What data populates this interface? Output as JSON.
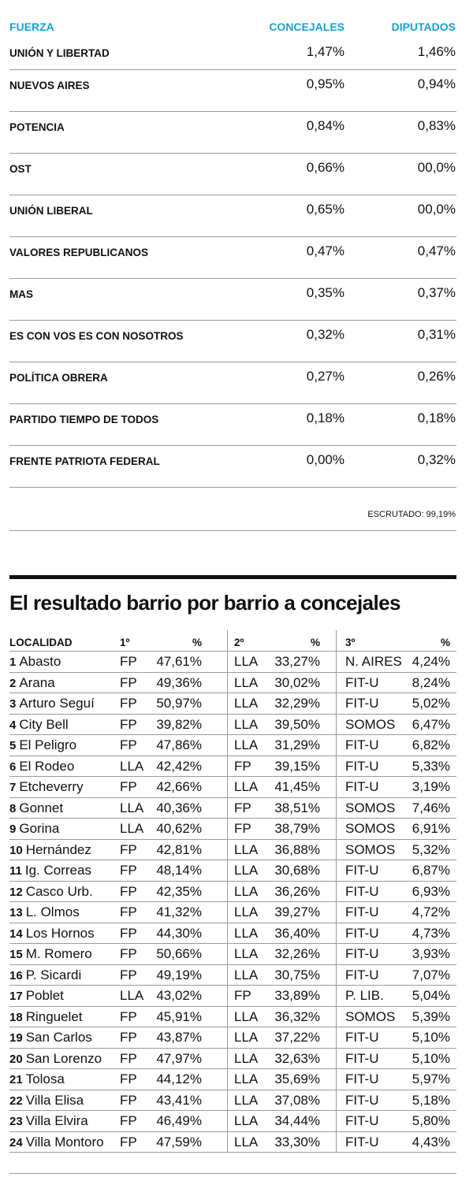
{
  "top_table": {
    "headers": {
      "fuerza": "FUERZA",
      "concejales": "CONCEJALES",
      "diputados": "DIPUTADOS"
    },
    "rows": [
      {
        "name": "UNIÓN Y LIBERTAD",
        "concejales": "1,47%",
        "diputados": "1,46%"
      },
      {
        "name": "NUEVOS AIRES",
        "concejales": "0,95%",
        "diputados": "0,94%"
      },
      {
        "name": "POTENCIA",
        "concejales": "0,84%",
        "diputados": "0,83%"
      },
      {
        "name": "OST",
        "concejales": "0,66%",
        "diputados": "00,0%"
      },
      {
        "name": "UNIÓN LIBERAL",
        "concejales": "0,65%",
        "diputados": "00,0%"
      },
      {
        "name": "VALORES REPUBLICANOS",
        "concejales": "0,47%",
        "diputados": "0,47%"
      },
      {
        "name": "MAS",
        "concejales": "0,35%",
        "diputados": "0,37%"
      },
      {
        "name": "ES CON VOS ES CON NOSOTROS",
        "concejales": "0,32%",
        "diputados": "0,31%"
      },
      {
        "name": "POLÍTICA OBRERA",
        "concejales": "0,27%",
        "diputados": "0,26%"
      },
      {
        "name": "PARTIDO TIEMPO DE TODOS",
        "concejales": "0,18%",
        "diputados": "0,18%"
      },
      {
        "name": "FRENTE PATRIOTA FEDERAL",
        "concejales": "0,00%",
        "diputados": "0,32%"
      }
    ],
    "escrutado": "ESCRUTADO: 99,19%"
  },
  "section_title": "El resultado barrio por barrio a concejales",
  "barrio_table": {
    "headers": {
      "localidad": "LOCALIDAD",
      "first": "1º",
      "second": "2º",
      "third": "3º",
      "pct": "%"
    },
    "rows": [
      {
        "num": "1",
        "name": "Abasto",
        "p1": "FP",
        "v1": "47,61%",
        "p2": "LLA",
        "v2": "33,27%",
        "p3": "N. AIRES",
        "v3": "4,24%"
      },
      {
        "num": "2",
        "name": "Arana",
        "p1": "FP",
        "v1": "49,36%",
        "p2": "LLA",
        "v2": "30,02%",
        "p3": "FIT-U",
        "v3": "8,24%"
      },
      {
        "num": "3",
        "name": "Arturo Seguí",
        "p1": "FP",
        "v1": "50,97%",
        "p2": "LLA",
        "v2": "32,29%",
        "p3": "FIT-U",
        "v3": "5,02%"
      },
      {
        "num": "4",
        "name": "City Bell",
        "p1": "FP",
        "v1": "39,82%",
        "p2": "LLA",
        "v2": "39,50%",
        "p3": "SOMOS",
        "v3": "6,47%"
      },
      {
        "num": "5",
        "name": "El Peligro",
        "p1": "FP",
        "v1": "47,86%",
        "p2": "LLA",
        "v2": "31,29%",
        "p3": "FIT-U",
        "v3": "6,82%"
      },
      {
        "num": "6",
        "name": "El Rodeo",
        "p1": "LLA",
        "v1": "42,42%",
        "p2": "FP",
        "v2": "39,15%",
        "p3": "FIT-U",
        "v3": "5,33%"
      },
      {
        "num": "7",
        "name": "Etcheverry",
        "p1": "FP",
        "v1": "42,66%",
        "p2": "LLA",
        "v2": "41,45%",
        "p3": "FIT-U",
        "v3": "3,19%"
      },
      {
        "num": "8",
        "name": "Gonnet",
        "p1": "LLA",
        "v1": "40,36%",
        "p2": "FP",
        "v2": "38,51%",
        "p3": "SOMOS",
        "v3": "7,46%"
      },
      {
        "num": "9",
        "name": "Gorina",
        "p1": "LLA",
        "v1": "40,62%",
        "p2": "FP",
        "v2": "38,79%",
        "p3": "SOMOS",
        "v3": "6,91%"
      },
      {
        "num": "10",
        "name": "Hernández",
        "p1": "FP",
        "v1": "42,81%",
        "p2": "LLA",
        "v2": "36,88%",
        "p3": "SOMOS",
        "v3": "5,32%"
      },
      {
        "num": "11",
        "name": "Ig. Correas",
        "p1": "FP",
        "v1": "48,14%",
        "p2": "LLA",
        "v2": "30,68%",
        "p3": "FIT-U",
        "v3": "6,87%"
      },
      {
        "num": "12",
        "name": "Casco Urb.",
        "p1": "FP",
        "v1": "42,35%",
        "p2": "LLA",
        "v2": "36,26%",
        "p3": "FIT-U",
        "v3": "6,93%"
      },
      {
        "num": "13",
        "name": "L. Olmos",
        "p1": "FP",
        "v1": "41,32%",
        "p2": "LLA",
        "v2": "39,27%",
        "p3": "FIT-U",
        "v3": "4,72%"
      },
      {
        "num": "14",
        "name": "Los Hornos",
        "p1": "FP",
        "v1": "44,30%",
        "p2": "LLA",
        "v2": "36,40%",
        "p3": "FIT-U",
        "v3": "4,73%"
      },
      {
        "num": "15",
        "name": "M. Romero",
        "p1": "FP",
        "v1": "50,66%",
        "p2": "LLA",
        "v2": "32,26%",
        "p3": "FIT-U",
        "v3": "3,93%"
      },
      {
        "num": "16",
        "name": "P. Sicardi",
        "p1": "FP",
        "v1": "49,19%",
        "p2": "LLA",
        "v2": "30,75%",
        "p3": "FIT-U",
        "v3": "7,07%"
      },
      {
        "num": "17",
        "name": "Poblet",
        "p1": "LLA",
        "v1": "43,02%",
        "p2": "FP",
        "v2": "33,89%",
        "p3": "P. LIB.",
        "v3": "5,04%"
      },
      {
        "num": "18",
        "name": "Ringuelet",
        "p1": "FP",
        "v1": "45,91%",
        "p2": "LLA",
        "v2": "36,32%",
        "p3": "SOMOS",
        "v3": "5,39%"
      },
      {
        "num": "19",
        "name": "San Carlos",
        "p1": "FP",
        "v1": "43,87%",
        "p2": "LLA",
        "v2": "37,22%",
        "p3": "FIT-U",
        "v3": "5,10%"
      },
      {
        "num": "20",
        "name": "San Lorenzo",
        "p1": "FP",
        "v1": "47,97%",
        "p2": "LLA",
        "v2": "32,63%",
        "p3": "FIT-U",
        "v3": "5,10%"
      },
      {
        "num": "21",
        "name": "Tolosa",
        "p1": "FP",
        "v1": "44,12%",
        "p2": "LLA",
        "v2": "35,69%",
        "p3": "FIT-U",
        "v3": "5,97%"
      },
      {
        "num": "22",
        "name": "Villa Elisa",
        "p1": "FP",
        "v1": "43,41%",
        "p2": "LLA",
        "v2": "37,08%",
        "p3": "FIT-U",
        "v3": "5,18%"
      },
      {
        "num": "23",
        "name": "Villa Elvira",
        "p1": "FP",
        "v1": "46,49%",
        "p2": "LLA",
        "v2": "34,44%",
        "p3": "FIT-U",
        "v3": "5,80%"
      },
      {
        "num": "24",
        "name": "Villa Montoro",
        "p1": "FP",
        "v1": "47,59%",
        "p2": "LLA",
        "v2": "33,30%",
        "p3": "FIT-U",
        "v3": "4,43%"
      }
    ]
  },
  "colors": {
    "header_accent": "#1a9fd0",
    "text": "#111111",
    "rule": "#9a9a9a"
  }
}
